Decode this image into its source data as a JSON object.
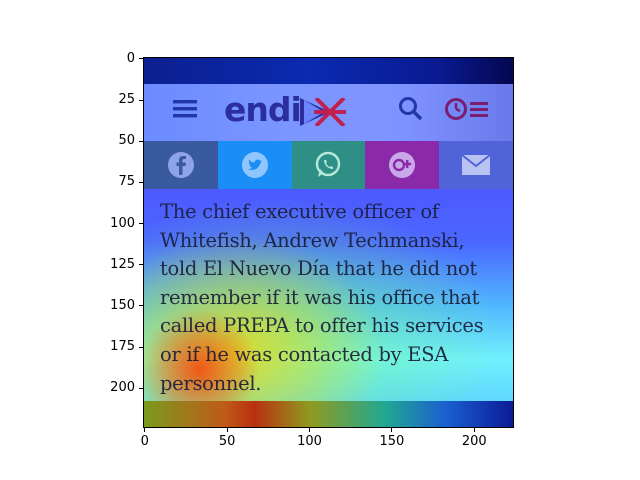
{
  "header": {
    "logo_text": "endi",
    "icons": [
      "menu-icon",
      "flag-icon",
      "search-icon",
      "clock-list-icon"
    ]
  },
  "share_bar": {
    "items": [
      {
        "name": "facebook",
        "icon": "facebook-icon",
        "color": "#3a5aa0"
      },
      {
        "name": "twitter",
        "icon": "twitter-icon",
        "color": "#1a8ef5"
      },
      {
        "name": "whatsapp",
        "icon": "whatsapp-icon",
        "color": "#2d8f86"
      },
      {
        "name": "google-plus",
        "icon": "google-plus-icon",
        "color": "#8a2aa8"
      },
      {
        "name": "email",
        "icon": "email-icon",
        "color": "#5163d8"
      }
    ]
  },
  "article": {
    "lines": [
      "The chief executive officer of",
      "Whitefish, Andrew Techmanski,",
      "told El Nuevo Día that he did not",
      "remember if it was his office that",
      "called PREPA to offer his services",
      "or if he was contacted by ESA",
      "personnel."
    ]
  },
  "axes": {
    "y_ticks": [
      "0",
      "25",
      "50",
      "75",
      "100",
      "125",
      "150",
      "175",
      "200"
    ],
    "x_ticks": [
      "0",
      "50",
      "100",
      "150",
      "200"
    ],
    "y_tick_values": [
      0,
      25,
      50,
      75,
      100,
      125,
      150,
      175,
      200
    ],
    "x_tick_values": [
      0,
      50,
      100,
      150,
      200
    ],
    "extent": [
      0,
      224
    ]
  }
}
